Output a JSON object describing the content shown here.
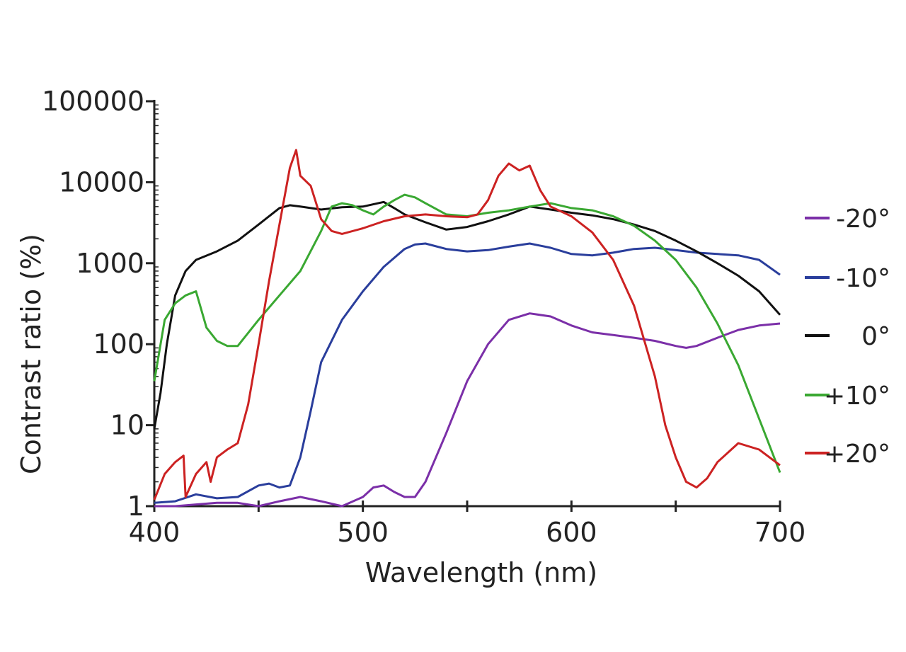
{
  "chart_data": {
    "type": "line",
    "title": "",
    "xlabel": "Wavelength (nm)",
    "ylabel": "Contrast ratio (%)",
    "xlim": [
      400,
      700
    ],
    "ylim": [
      1,
      100000
    ],
    "yscale": "log",
    "xticks": [
      400,
      500,
      600,
      700
    ],
    "xtick_labels": [
      "400",
      "500",
      "600",
      "700"
    ],
    "yticks": [
      1,
      10,
      100,
      1000,
      10000,
      100000
    ],
    "ytick_labels": [
      "1",
      "10",
      "100",
      "1000",
      "10000",
      "100000"
    ],
    "grid": false,
    "legend_position": "right",
    "series": [
      {
        "name": "-20°",
        "color": "#7b2fa8",
        "x": [
          400,
          410,
          420,
          430,
          440,
          450,
          460,
          470,
          480,
          490,
          500,
          505,
          510,
          515,
          520,
          525,
          530,
          540,
          550,
          560,
          570,
          580,
          590,
          600,
          610,
          620,
          630,
          640,
          650,
          655,
          660,
          670,
          680,
          690,
          700
        ],
        "y": [
          1,
          1,
          1.05,
          1.1,
          1.1,
          1.0,
          1.15,
          1.3,
          1.15,
          1.0,
          1.3,
          1.7,
          1.8,
          1.5,
          1.3,
          1.3,
          2,
          8,
          35,
          100,
          200,
          240,
          220,
          170,
          140,
          130,
          120,
          110,
          95,
          90,
          95,
          120,
          150,
          170,
          180
        ]
      },
      {
        "name": "-10°",
        "color": "#2a3e9c",
        "x": [
          400,
          410,
          420,
          430,
          440,
          450,
          455,
          460,
          465,
          470,
          475,
          480,
          490,
          500,
          510,
          520,
          525,
          530,
          540,
          550,
          560,
          570,
          580,
          590,
          600,
          610,
          620,
          630,
          640,
          650,
          660,
          670,
          680,
          690,
          700
        ],
        "y": [
          1.1,
          1.15,
          1.4,
          1.25,
          1.3,
          1.8,
          1.9,
          1.7,
          1.8,
          4,
          15,
          60,
          200,
          450,
          900,
          1500,
          1700,
          1750,
          1500,
          1400,
          1450,
          1600,
          1750,
          1550,
          1300,
          1250,
          1350,
          1500,
          1550,
          1450,
          1350,
          1300,
          1250,
          1100,
          720
        ]
      },
      {
        "name": "0°",
        "color": "#111111",
        "x": [
          400,
          403,
          406,
          410,
          415,
          420,
          430,
          440,
          450,
          460,
          465,
          470,
          480,
          490,
          500,
          510,
          515,
          520,
          530,
          540,
          550,
          560,
          570,
          580,
          590,
          600,
          610,
          620,
          630,
          640,
          650,
          660,
          670,
          680,
          690,
          700
        ],
        "y": [
          9,
          25,
          100,
          400,
          800,
          1100,
          1400,
          1900,
          3000,
          4800,
          5200,
          5000,
          4600,
          4900,
          5000,
          5700,
          4800,
          4000,
          3200,
          2600,
          2800,
          3300,
          4000,
          5000,
          4600,
          4200,
          3900,
          3500,
          3000,
          2500,
          1900,
          1400,
          1000,
          700,
          450,
          230
        ]
      },
      {
        "name": "+10°",
        "color": "#3aa832",
        "x": [
          400,
          405,
          410,
          415,
          420,
          425,
          430,
          435,
          440,
          450,
          460,
          470,
          480,
          485,
          490,
          495,
          500,
          505,
          510,
          515,
          520,
          525,
          530,
          540,
          550,
          560,
          570,
          580,
          590,
          600,
          610,
          620,
          630,
          640,
          650,
          660,
          670,
          680,
          690,
          700
        ],
        "y": [
          35,
          200,
          320,
          400,
          450,
          160,
          110,
          95,
          95,
          200,
          400,
          800,
          2500,
          5000,
          5500,
          5200,
          4500,
          4000,
          5000,
          6000,
          7000,
          6500,
          5500,
          4000,
          3800,
          4200,
          4500,
          5000,
          5500,
          4800,
          4500,
          3800,
          2900,
          1900,
          1100,
          500,
          180,
          55,
          12,
          2.6
        ]
      },
      {
        "name": "+20°",
        "color": "#cc2222",
        "x": [
          400,
          405,
          410,
          414,
          415,
          420,
          425,
          427,
          430,
          435,
          440,
          445,
          450,
          455,
          460,
          465,
          468,
          470,
          475,
          480,
          485,
          490,
          500,
          510,
          520,
          530,
          540,
          550,
          555,
          560,
          565,
          570,
          575,
          580,
          585,
          590,
          600,
          610,
          620,
          630,
          640,
          645,
          650,
          655,
          660,
          665,
          670,
          680,
          690,
          700
        ],
        "y": [
          1.2,
          2.5,
          3.5,
          4.2,
          1.3,
          2.5,
          3.5,
          2.0,
          4,
          5,
          6,
          18,
          100,
          600,
          3000,
          15000,
          25000,
          12000,
          9000,
          3500,
          2500,
          2300,
          2700,
          3300,
          3800,
          4000,
          3800,
          3700,
          4000,
          6000,
          12000,
          17000,
          14000,
          16000,
          8000,
          5000,
          3800,
          2400,
          1100,
          300,
          40,
          10,
          4,
          2,
          1.7,
          2.2,
          3.5,
          6,
          5,
          3.2
        ]
      }
    ]
  }
}
